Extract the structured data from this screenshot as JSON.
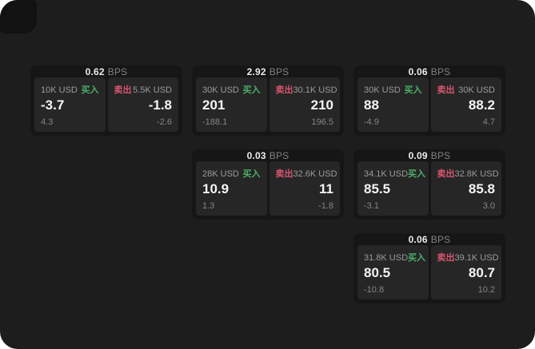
{
  "page": {
    "bg_color": "#1d1d1d",
    "card_bg_color": "#161616",
    "panel_bg_color": "#262626",
    "corner_tile_color": "#121212"
  },
  "labels": {
    "bps": "BPS",
    "buy": "买入",
    "sell": "卖出"
  },
  "colors": {
    "buy": "#4caf68",
    "sell": "#d9556f"
  },
  "cards": [
    {
      "bps": "0.62",
      "grid": {
        "row": 1,
        "col": 1
      },
      "buy": {
        "amount": "10K USD",
        "price": "-3.7",
        "delta": "4.3"
      },
      "sell": {
        "amount": "5.5K USD",
        "price": "-1.8",
        "delta": "-2.6"
      }
    },
    {
      "bps": "2.92",
      "grid": {
        "row": 1,
        "col": 2
      },
      "buy": {
        "amount": "30K USD",
        "price": "201",
        "delta": "-188.1"
      },
      "sell": {
        "amount": "30.1K USD",
        "price": "210",
        "delta": "196.5"
      }
    },
    {
      "bps": "0.06",
      "grid": {
        "row": 1,
        "col": 3
      },
      "buy": {
        "amount": "30K USD",
        "price": "88",
        "delta": "-4.9"
      },
      "sell": {
        "amount": "30K USD",
        "price": "88.2",
        "delta": "4.7"
      }
    },
    {
      "bps": "0.03",
      "grid": {
        "row": 2,
        "col": 2
      },
      "buy": {
        "amount": "28K USD",
        "price": "10.9",
        "delta": "1.3"
      },
      "sell": {
        "amount": "32.6K USD",
        "price": "11",
        "delta": "-1.8"
      }
    },
    {
      "bps": "0.09",
      "grid": {
        "row": 2,
        "col": 3
      },
      "buy": {
        "amount": "34.1K USD",
        "price": "85.5",
        "delta": "-3.1"
      },
      "sell": {
        "amount": "32.8K USD",
        "price": "85.8",
        "delta": "3.0"
      }
    },
    {
      "bps": "0.06",
      "grid": {
        "row": 3,
        "col": 3
      },
      "buy": {
        "amount": "31.8K USD",
        "price": "80.5",
        "delta": "-10.8"
      },
      "sell": {
        "amount": "39.1K USD",
        "price": "80.7",
        "delta": "10.2"
      }
    }
  ]
}
